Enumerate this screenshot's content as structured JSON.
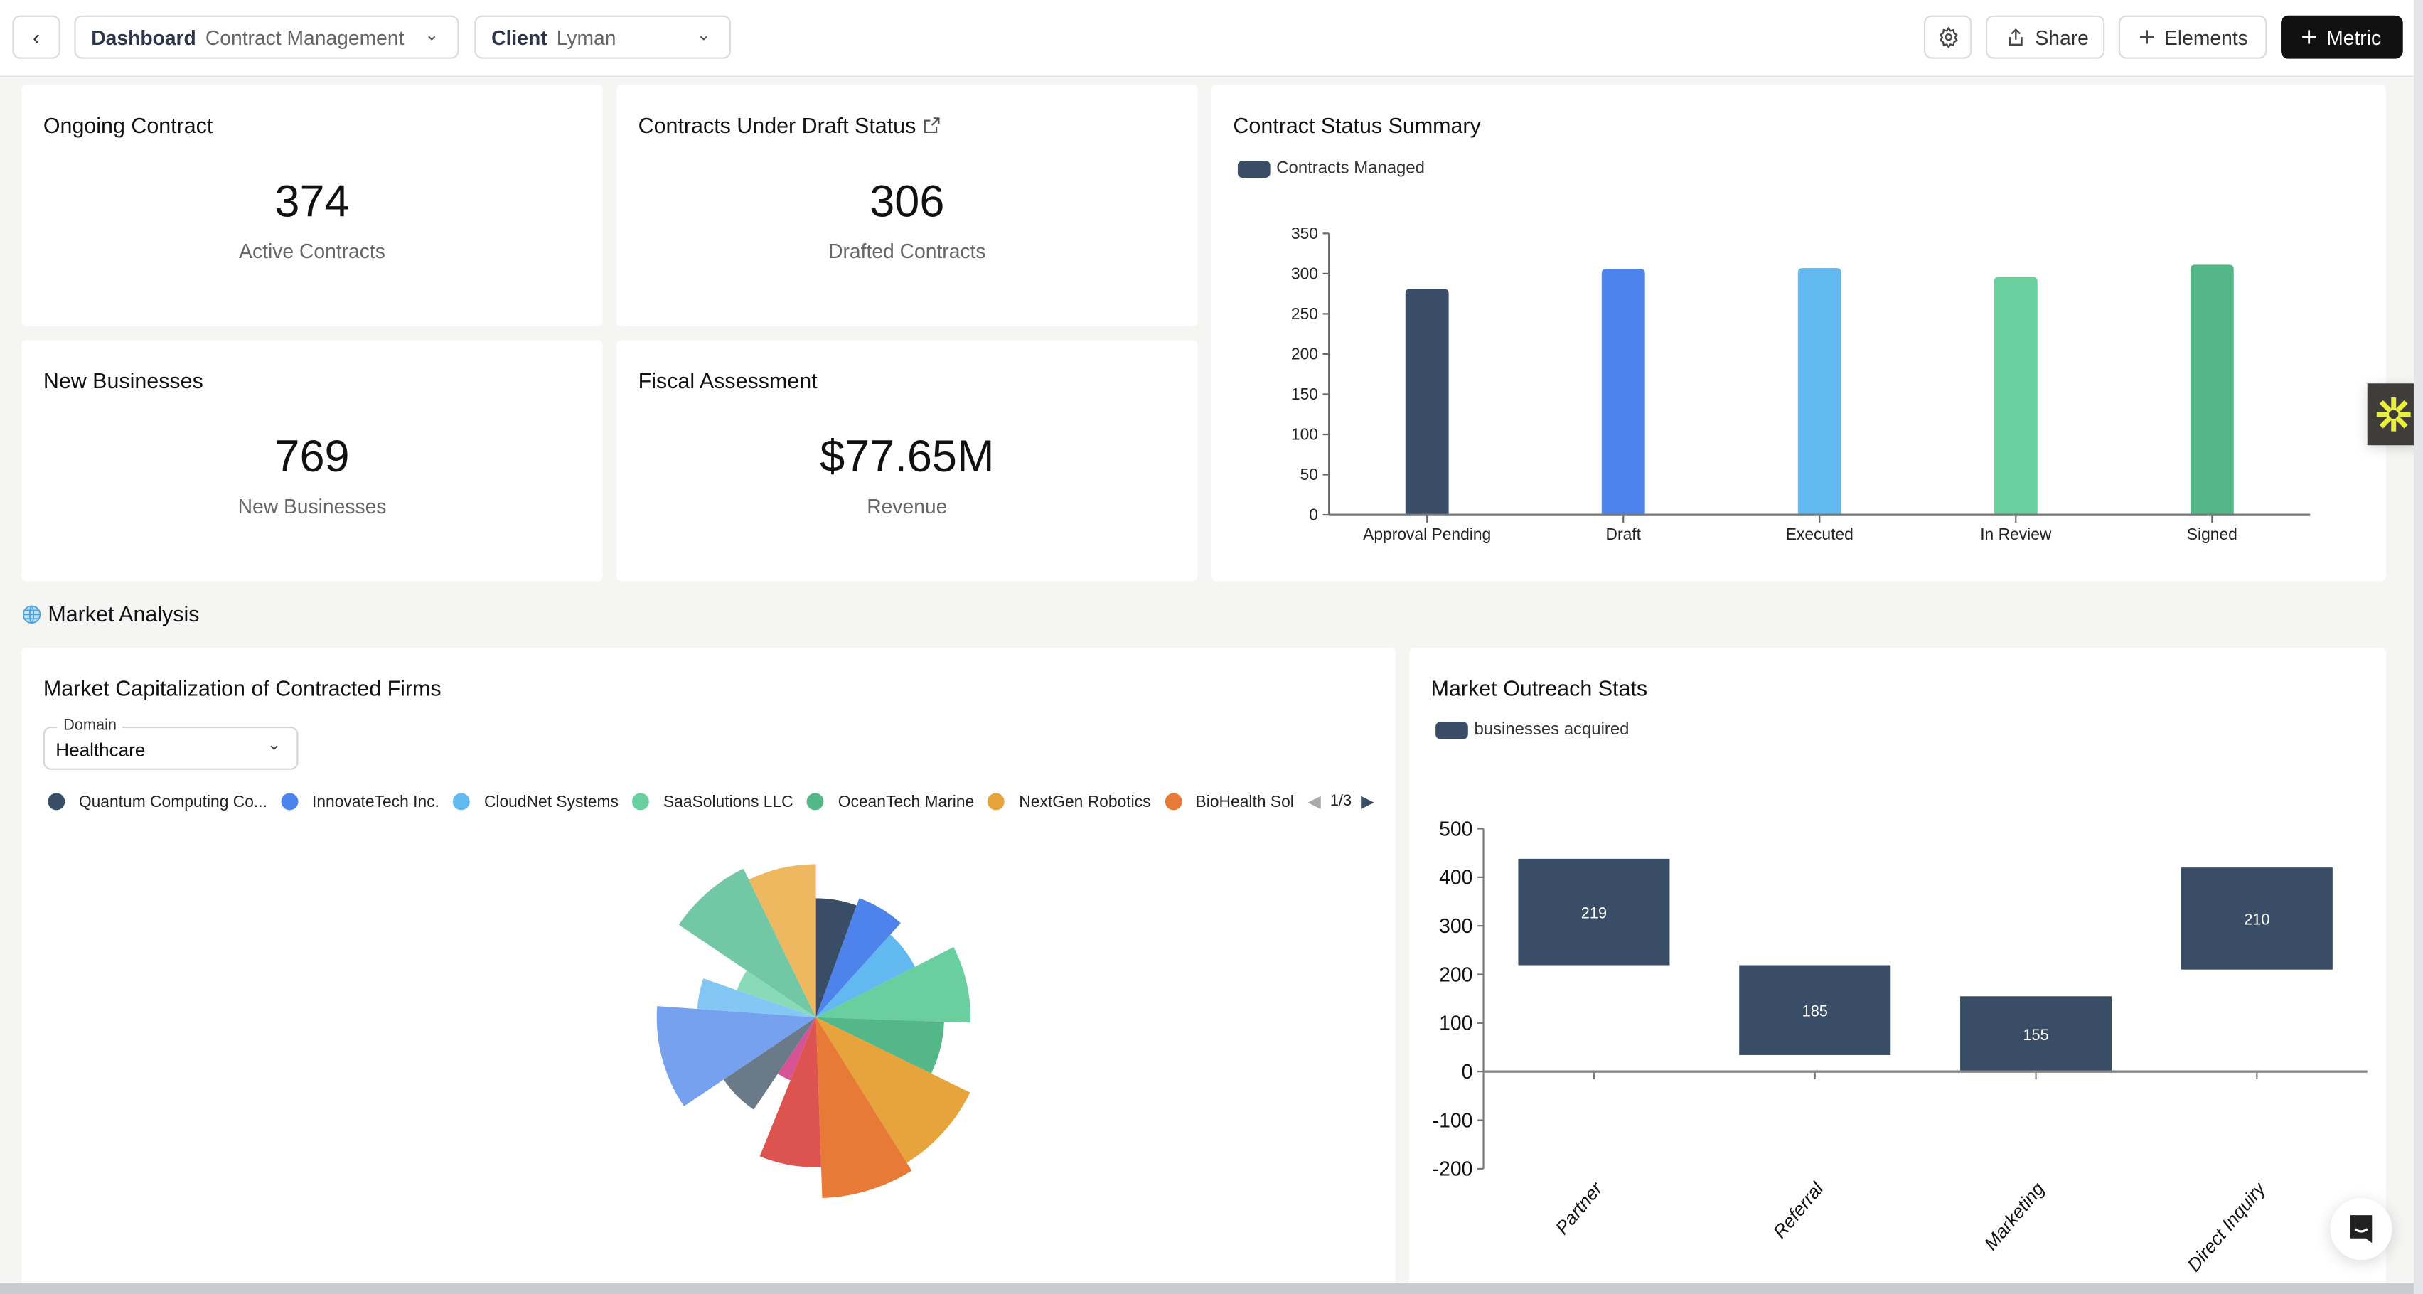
{
  "header": {
    "back_icon": "chevron-left-icon",
    "dashboard": {
      "label": "Dashboard",
      "value": "Contract Management"
    },
    "client": {
      "label": "Client",
      "value": "Lyman"
    },
    "settings_icon": "gear-icon",
    "share_label": "Share",
    "elements_label": "Elements",
    "metric_label": "Metric"
  },
  "kpis": [
    {
      "title": "Ongoing Contract",
      "value": "374",
      "subtitle": "Active Contracts"
    },
    {
      "title": "Contracts Under Draft Status",
      "value": "306",
      "subtitle": "Drafted Contracts",
      "icon": "external-link-icon"
    },
    {
      "title": "New Businesses",
      "value": "769",
      "subtitle": "New Businesses"
    },
    {
      "title": "Fiscal Assessment",
      "value": "$77.65M",
      "subtitle": "Revenue"
    }
  ],
  "section": {
    "title": "Market Analysis",
    "icon": "globe-icon"
  },
  "pie_card": {
    "title": "Market Capitalization of Contracted Firms",
    "domain_label": "Domain",
    "domain_value": "Healthcare",
    "legend_page": "1/3"
  },
  "chart_data": [
    {
      "type": "bar",
      "title": "Contract Status Summary",
      "legend": [
        "Contracts Managed"
      ],
      "categories": [
        "Approval Pending",
        "Draft",
        "Executed",
        "In Review",
        "Signed"
      ],
      "series": [
        {
          "name": "Contracts Managed",
          "values": [
            281,
            306,
            307,
            296,
            311
          ]
        }
      ],
      "colors": [
        "#394d66",
        "#4f83ec",
        "#62b9f2",
        "#69cf9e",
        "#54b787"
      ],
      "ylim": [
        0,
        350
      ],
      "yticks": [
        0,
        50,
        100,
        150,
        200,
        250,
        300,
        350
      ],
      "grid": false
    },
    {
      "type": "pie",
      "rose": true,
      "legend_items": [
        "Quantum Computing Co...",
        "InnovateTech Inc.",
        "CloudNet Systems",
        "SaaSolutions LLC",
        "OceanTech Marine",
        "NextGen Robotics",
        "BioHealth Sol"
      ],
      "values": [
        20,
        22,
        21,
        29,
        24,
        32,
        30,
        24,
        12,
        22,
        38,
        15,
        15,
        30,
        26
      ],
      "radius_values": [
        77,
        82,
        72,
        100,
        83,
        111,
        117,
        97,
        44,
        72,
        103,
        77,
        54,
        107,
        99
      ],
      "colors": [
        "#394d66",
        "#4f83ec",
        "#62b9f2",
        "#69cf9e",
        "#54b787",
        "#e7a33c",
        "#e77a37",
        "#dd534f",
        "#d65495",
        "#6a7a89",
        "#76a1ef",
        "#84c7f5",
        "#89dbb8",
        "#72c8a5",
        "#edb85f"
      ]
    },
    {
      "type": "bar",
      "subtype": "waterfall",
      "title": "Market Outreach Stats",
      "legend": [
        "businesses acquired"
      ],
      "categories": [
        "Partner",
        "Referral",
        "Marketing",
        "Direct Inquiry"
      ],
      "series": [
        {
          "name": "businesses acquired",
          "values": [
            219,
            185,
            155,
            210
          ],
          "base": [
            219,
            34,
            0,
            210
          ]
        }
      ],
      "color": "#394d66",
      "ylim": [
        -200,
        500
      ],
      "yticks": [
        -200,
        -100,
        0,
        100,
        200,
        300,
        400,
        500
      ],
      "grid": false
    }
  ]
}
